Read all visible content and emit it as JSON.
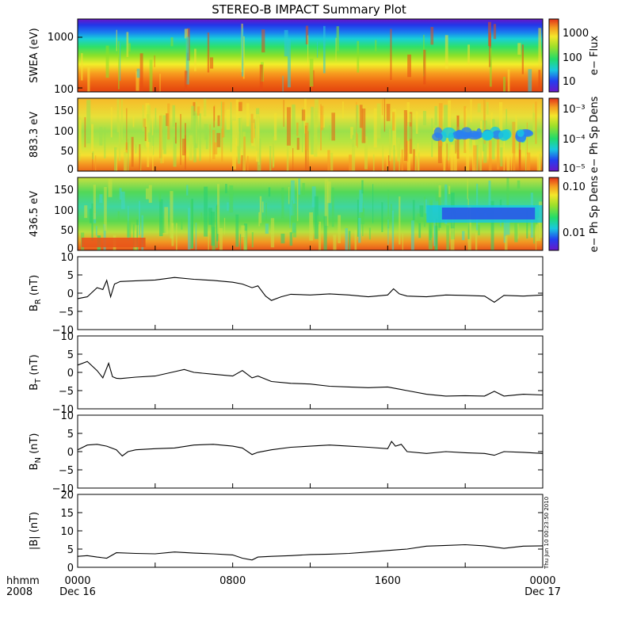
{
  "title": "STEREO-B IMPACT Summary Plot",
  "stamp": "Thu Jun 10 00:23:50 2010",
  "x_axis": {
    "row_label": "hhmm",
    "year": "2008",
    "ticks": [
      "0000",
      "0800",
      "1600",
      "0000"
    ],
    "dates": [
      "Dec 16",
      "Dec 17"
    ]
  },
  "chart_data": [
    {
      "type": "heatmap",
      "ylabel": "SWEA (eV)",
      "ylog": true,
      "ylim": [
        90,
        2500
      ],
      "ytick_labels": [
        "1000",
        "100"
      ],
      "colorbar": {
        "label": "e− Flux",
        "ticks": [
          "1000",
          "100",
          "10"
        ],
        "log": true
      },
      "profile": "energy flux decreasing with energy: red/orange near 100 eV, yellow ~200-300 eV, green ~400-700 eV, cyan/blue ~1000 eV, purple above ~1500 eV; roughly constant over the day"
    },
    {
      "type": "heatmap",
      "ylabel": "883.3 eV",
      "ylim": [
        0,
        180
      ],
      "ytick_labels": [
        "150",
        "100",
        "50",
        "0"
      ],
      "colorbar": {
        "label": "e− Ph Sp Dens",
        "ticks": [
          "10⁻³",
          "10⁻⁴",
          "10⁻⁵"
        ],
        "log": true
      },
      "profile": "yellow/orange dominated, green band near 70-90 deg in first third, blue-cyan band near 90 deg after ~1800"
    },
    {
      "type": "heatmap",
      "ylabel": "436.5 eV",
      "ylim": [
        0,
        180
      ],
      "ytick_labels": [
        "150",
        "100",
        "50",
        "0"
      ],
      "colorbar": {
        "label": "e− Ph Sp Dens",
        "ticks": [
          "0.10",
          "0.01"
        ],
        "log": true
      },
      "profile": "green dominated with cyan patches near 90 deg, red/orange strip near 0-20 deg early, deep blue band at 90 deg from ~1800 to ~2300"
    },
    {
      "type": "line",
      "ylabel": "B_R (nT)",
      "ylim": [
        -10,
        10
      ],
      "ytick_labels": [
        "10",
        "5",
        "0",
        "−5",
        "−10"
      ],
      "x_hours": [
        0,
        0.5,
        1.0,
        1.3,
        1.5,
        1.7,
        1.9,
        2.2,
        3,
        4,
        5,
        6,
        7,
        8,
        8.5,
        9,
        9.3,
        9.7,
        10,
        10.5,
        11,
        12,
        13,
        14,
        15,
        16,
        16.3,
        16.6,
        17,
        18,
        19,
        20,
        21,
        21.5,
        22,
        23,
        24
      ],
      "values": [
        -1.5,
        -1.0,
        1.5,
        1.0,
        3.5,
        -1.0,
        2.5,
        3.2,
        3.4,
        3.6,
        4.3,
        3.8,
        3.5,
        3.0,
        2.5,
        1.5,
        2.0,
        -0.8,
        -2.0,
        -1.0,
        -0.3,
        -0.5,
        -0.2,
        -0.5,
        -1.0,
        -0.5,
        1.2,
        -0.2,
        -0.8,
        -1.0,
        -0.5,
        -0.6,
        -0.8,
        -2.5,
        -0.6,
        -0.8,
        -0.5
      ]
    },
    {
      "type": "line",
      "ylabel": "B_T (nT)",
      "ylim": [
        -10,
        10
      ],
      "ytick_labels": [
        "10",
        "5",
        "0",
        "−5",
        "−10"
      ],
      "x_hours": [
        0,
        0.5,
        1.0,
        1.3,
        1.6,
        1.8,
        2.0,
        2.2,
        3,
        4,
        5,
        5.5,
        6,
        7,
        8,
        8.5,
        9,
        9.3,
        10,
        11,
        12,
        13,
        14,
        15,
        16,
        17,
        18,
        19,
        20,
        21,
        21.5,
        22,
        23,
        24
      ],
      "values": [
        2.0,
        3.0,
        0.5,
        -1.5,
        2.5,
        -1.2,
        -1.6,
        -1.7,
        -1.3,
        -1.0,
        0.2,
        0.8,
        0,
        -0.5,
        -1.0,
        0.5,
        -1.5,
        -1.0,
        -2.5,
        -3.0,
        -3.2,
        -3.8,
        -4.0,
        -4.2,
        -4.0,
        -5.0,
        -6.0,
        -6.5,
        -6.4,
        -6.5,
        -5.2,
        -6.5,
        -6.0,
        -6.2
      ]
    },
    {
      "type": "line",
      "ylabel": "B_N (nT)",
      "ylim": [
        -10,
        10
      ],
      "ytick_labels": [
        "10",
        "5",
        "0",
        "−5",
        "−10"
      ],
      "x_hours": [
        0,
        0.5,
        1.0,
        1.5,
        2.0,
        2.3,
        2.6,
        3,
        4,
        5,
        6,
        7,
        8,
        8.5,
        9,
        9.3,
        10,
        11,
        12,
        13,
        14,
        15,
        16,
        16.2,
        16.4,
        16.7,
        17,
        18,
        19,
        20,
        21,
        21.5,
        22,
        23,
        24
      ],
      "values": [
        0.5,
        1.8,
        2.0,
        1.5,
        0.5,
        -1.2,
        0,
        0.5,
        0.8,
        1.0,
        1.8,
        2.0,
        1.5,
        1.0,
        -0.8,
        -0.2,
        0.5,
        1.2,
        1.5,
        1.8,
        1.5,
        1.2,
        0.8,
        2.8,
        1.5,
        2.0,
        0,
        -0.5,
        0,
        -0.3,
        -0.5,
        -1.0,
        0,
        -0.2,
        -0.5
      ]
    },
    {
      "type": "line",
      "ylabel": "|B| (nT)",
      "ylim": [
        0,
        20
      ],
      "ytick_labels": [
        "20",
        "15",
        "10",
        "5",
        "0"
      ],
      "x_hours": [
        0,
        0.5,
        1.0,
        1.5,
        2.0,
        3,
        4,
        5,
        6,
        7,
        8,
        8.5,
        9,
        9.3,
        10,
        11,
        12,
        13,
        14,
        15,
        16,
        17,
        18,
        19,
        20,
        21,
        22,
        23,
        24
      ],
      "values": [
        3.0,
        3.2,
        2.8,
        2.5,
        4.0,
        3.8,
        3.7,
        4.2,
        3.9,
        3.7,
        3.4,
        2.5,
        2.0,
        2.8,
        3.0,
        3.2,
        3.5,
        3.6,
        3.8,
        4.2,
        4.6,
        5.0,
        5.8,
        6.0,
        6.2,
        5.9,
        5.2,
        5.8,
        5.9
      ]
    }
  ]
}
